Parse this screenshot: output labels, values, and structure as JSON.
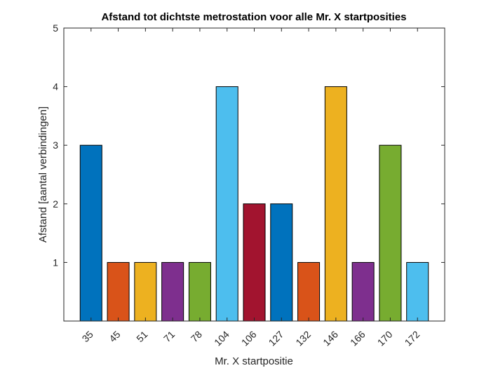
{
  "chart_data": {
    "type": "bar",
    "title": "Afstand tot dichtste metrostation voor alle Mr. X startposities",
    "xlabel": "Mr. X startpositie",
    "ylabel": "Afstand [aantal verbindingen]",
    "categories": [
      "35",
      "45",
      "51",
      "71",
      "78",
      "104",
      "106",
      "127",
      "132",
      "146",
      "166",
      "170",
      "172"
    ],
    "values": [
      3,
      1,
      1,
      1,
      1,
      4,
      2,
      2,
      1,
      4,
      1,
      3,
      1
    ],
    "bar_colors": [
      "#0072BD",
      "#D95319",
      "#EDB120",
      "#7E2F8E",
      "#77AC30",
      "#4DBEEE",
      "#A2142F",
      "#0072BD",
      "#D95319",
      "#EDB120",
      "#7E2F8E",
      "#77AC30",
      "#4DBEEE"
    ],
    "ylim": [
      0,
      5
    ],
    "yticks": [
      1,
      2,
      3,
      4,
      5
    ],
    "grid": false,
    "legend": "none"
  }
}
